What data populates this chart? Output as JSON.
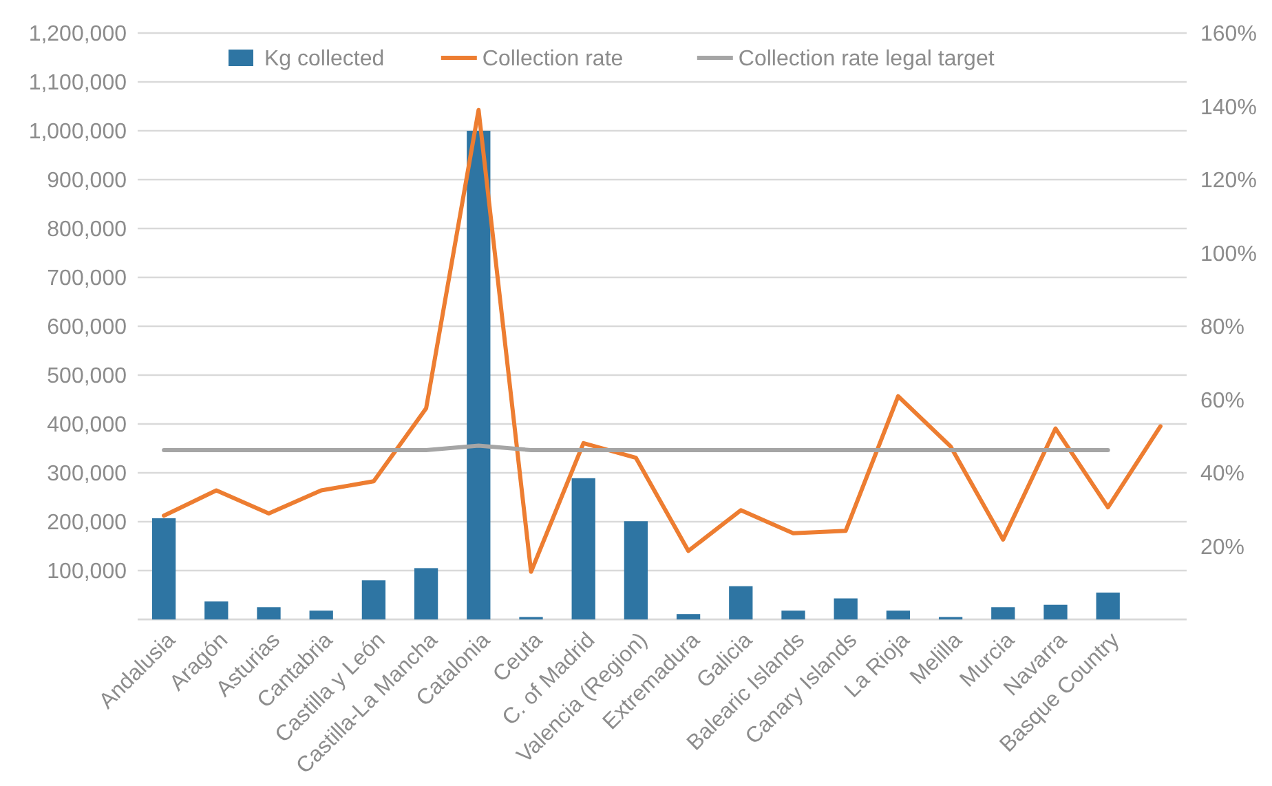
{
  "chart_data": {
    "type": "bar",
    "categories": [
      "Andalusia",
      "Aragón",
      "Asturias",
      "Cantabria",
      "Castilla y León",
      "Castilla-La Mancha",
      "Catalonia",
      "Ceuta",
      "C. of Madrid",
      "Valencia (Region)",
      "Extremadura",
      "Galicia",
      "Balearic Islands",
      "Canary Islands",
      "La Rioja",
      "Melilla",
      "Murcia",
      "Navarra",
      "Basque Country",
      null
    ],
    "series": [
      {
        "name": "Kg collected",
        "color": "#2e75a3",
        "values": [
          207000,
          37000,
          25000,
          18000,
          80000,
          105000,
          1000000,
          5000,
          289000,
          201000,
          11000,
          68000,
          18000,
          43000,
          18000,
          5000,
          25000,
          30000,
          55000,
          null
        ]
      },
      {
        "name": "Collection rate",
        "type": "line",
        "axis": "y2",
        "color": "#ed7d31",
        "values": [
          28.3,
          35.2,
          28.9,
          35.2,
          37.7,
          57.6,
          139,
          13,
          48.1,
          44.1,
          18.7,
          29.8,
          23.5,
          24.2,
          60.9,
          47.2,
          21.8,
          52.1,
          30.6,
          52.7
        ]
      },
      {
        "name": "Collection rate legal target",
        "type": "line",
        "axis": "y2",
        "color": "#a5a5a5",
        "values": [
          46.2,
          46.2,
          46.2,
          46.2,
          46.2,
          46.2,
          47.4,
          46.2,
          46.2,
          46.2,
          46.2,
          46.2,
          46.2,
          46.2,
          46.2,
          46.2,
          46.2,
          46.2,
          46.2,
          null
        ]
      }
    ],
    "ylim": [
      0,
      1200000
    ],
    "yticks": [
      {
        "value": 0,
        "label": null
      },
      {
        "value": 100000,
        "label": "100,000"
      },
      {
        "value": 200000,
        "label": "200,000"
      },
      {
        "value": 300000,
        "label": "300,000"
      },
      {
        "value": 400000,
        "label": "400,000"
      },
      {
        "value": 500000,
        "label": "500,000"
      },
      {
        "value": 600000,
        "label": "600,000"
      },
      {
        "value": 700000,
        "label": "700,000"
      },
      {
        "value": 800000,
        "label": "800,000"
      },
      {
        "value": 900000,
        "label": "900,000"
      },
      {
        "value": 1000000,
        "label": "1,000,000"
      },
      {
        "value": 1100000,
        "label": "1,100,000"
      },
      {
        "value": 1200000,
        "label": "1,200,000"
      }
    ],
    "y2lim": [
      0,
      160
    ],
    "y2ticks": [
      {
        "value": 20,
        "label": "20%"
      },
      {
        "value": 40,
        "label": "40%"
      },
      {
        "value": 60,
        "label": "60%"
      },
      {
        "value": 80,
        "label": "80%"
      },
      {
        "value": 100,
        "label": "100%"
      },
      {
        "value": 120,
        "label": "120%"
      },
      {
        "value": 140,
        "label": "140%"
      },
      {
        "value": 160,
        "label": "160%"
      }
    ],
    "grid": "y",
    "legend": "top",
    "marker": "none",
    "line_style": "solid"
  }
}
